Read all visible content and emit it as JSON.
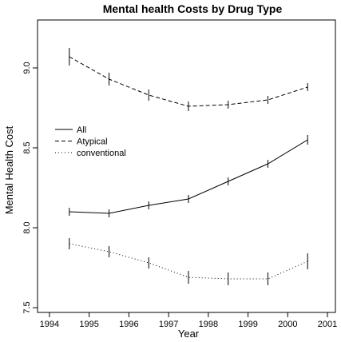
{
  "chart_data": {
    "type": "line",
    "title": "Mental health Costs by Drug Type",
    "xlabel": "Year",
    "ylabel": "Mental Health Cost",
    "xlim": [
      1993.7,
      2001.2
    ],
    "ylim": [
      7.47,
      9.3
    ],
    "x_ticks": [
      1994,
      1995,
      1996,
      1997,
      1998,
      1999,
      2000,
      2001
    ],
    "y_ticks": [
      7.5,
      8.0,
      8.5,
      9.0
    ],
    "y_tick_labels": [
      "7.5",
      "8.0",
      "8.5",
      "9.0"
    ],
    "grid": false,
    "legend_position": "left",
    "x": [
      1994.5,
      1995.5,
      1996.5,
      1997.5,
      1998.5,
      1999.5,
      2000.5
    ],
    "series": [
      {
        "name": "All",
        "line_style": "solid",
        "values": [
          8.1,
          8.09,
          8.14,
          8.18,
          8.29,
          8.4,
          8.55
        ],
        "error": [
          0.025,
          0.025,
          0.025,
          0.025,
          0.025,
          0.025,
          0.03
        ]
      },
      {
        "name": "Atypical",
        "line_style": "dashed",
        "values": [
          9.07,
          8.93,
          8.83,
          8.76,
          8.77,
          8.8,
          8.88
        ],
        "error": [
          0.055,
          0.04,
          0.035,
          0.03,
          0.025,
          0.025,
          0.025
        ]
      },
      {
        "name": "conventional",
        "line_style": "dotted",
        "values": [
          7.9,
          7.85,
          7.78,
          7.69,
          7.68,
          7.68,
          7.79
        ],
        "error": [
          0.035,
          0.035,
          0.035,
          0.04,
          0.04,
          0.04,
          0.05
        ]
      }
    ]
  }
}
